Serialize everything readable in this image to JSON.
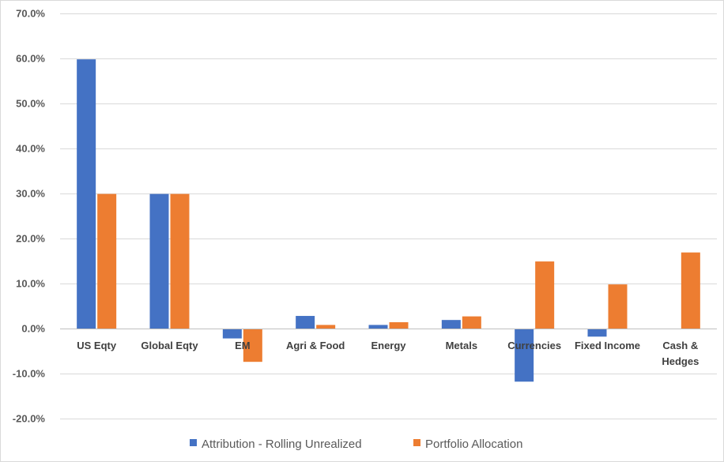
{
  "chart_data": {
    "type": "bar",
    "categories": [
      "US Eqty",
      "Global Eqty",
      "EM",
      "Agri & Food",
      "Energy",
      "Metals",
      "Currencies",
      "Fixed Income",
      "Cash & Hedges"
    ],
    "category_lines": [
      [
        "US Eqty"
      ],
      [
        "Global Eqty"
      ],
      [
        "EM"
      ],
      [
        "Agri & Food"
      ],
      [
        "Energy"
      ],
      [
        "Metals"
      ],
      [
        "Currencies"
      ],
      [
        "Fixed Income"
      ],
      [
        "Cash &",
        "Hedges"
      ]
    ],
    "series": [
      {
        "name": "Attribution - Rolling Unrealized",
        "color": "#4472C4",
        "values": [
          59.8,
          29.9,
          -2.2,
          2.8,
          0.8,
          1.9,
          -11.8,
          -1.8,
          0.0
        ]
      },
      {
        "name": "Portfolio Allocation",
        "color": "#ED7D31",
        "values": [
          29.9,
          29.9,
          -7.4,
          0.8,
          1.4,
          2.7,
          14.9,
          9.8,
          16.9
        ]
      }
    ],
    "ylim": [
      -20,
      70
    ],
    "ytick_values": [
      -20,
      -10,
      0,
      10,
      20,
      30,
      40,
      50,
      60,
      70
    ],
    "ytick_labels": [
      "-20.0%",
      "-10.0%",
      "0.0%",
      "10.0%",
      "20.0%",
      "30.0%",
      "40.0%",
      "50.0%",
      "60.0%",
      "70.0%"
    ],
    "grid": true,
    "legend_position": "bottom"
  }
}
